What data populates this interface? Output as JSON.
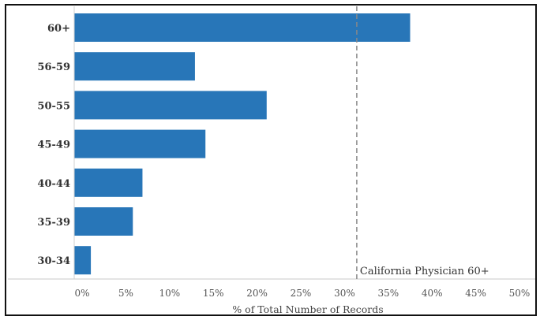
{
  "chart_data": {
    "type": "bar",
    "orientation": "horizontal",
    "categories": [
      "60+",
      "56-59",
      "50-55",
      "45-49",
      "40-44",
      "35-39",
      "30-34"
    ],
    "values": [
      37.5,
      12.9,
      21.1,
      14.1,
      6.9,
      5.8,
      1.0
    ],
    "xlabel": "% of Total Number of Records",
    "xlim": [
      0,
      50
    ],
    "xticks": [
      "0%",
      "5%",
      "10%",
      "15%",
      "20%",
      "25%",
      "30%",
      "35%",
      "40%",
      "45%",
      "50%"
    ],
    "reference_line": {
      "value": 31.4,
      "label": "California Physician 60+",
      "style": "dashed"
    },
    "colors": {
      "bar": "#2876b8",
      "reference": "#888888"
    },
    "grid": false
  }
}
